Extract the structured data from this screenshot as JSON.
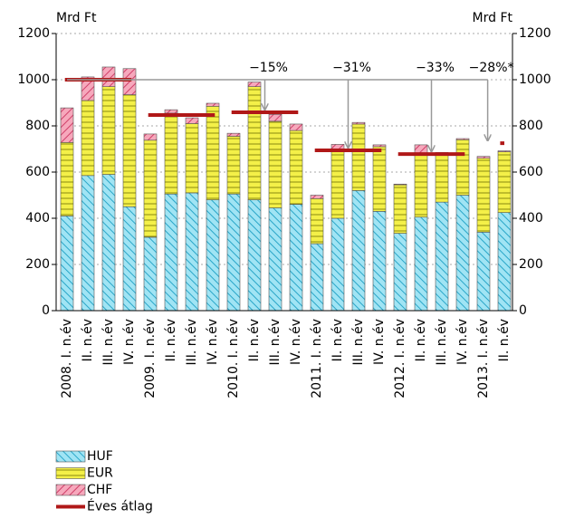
{
  "chart_data": {
    "type": "bar",
    "stacked": true,
    "y_label": "Mrd Ft",
    "y2_label": "Mrd Ft",
    "categories": [
      "2008. I. n.év",
      "II. n.év",
      "III. n.év",
      "IV. n.év",
      "2009. I. n.év",
      "II. n.év",
      "III. n.év",
      "IV. n.év",
      "2010. I. n.év",
      "II. n.év",
      "III. n.év",
      "IV. n.év",
      "2011. I. n.év",
      "II. n.év",
      "III. n.év",
      "IV. n.év",
      "2012. I. n.év",
      "II. n.év",
      "III. n.év",
      "IV. n.év",
      "2013. I. n.év",
      "II. n.év"
    ],
    "series": [
      {
        "name": "HUF",
        "color": "#a0e4f4",
        "hatch": "#2aa6c8",
        "values": [
          410,
          585,
          590,
          450,
          318,
          505,
          510,
          480,
          505,
          480,
          445,
          460,
          290,
          400,
          520,
          430,
          335,
          405,
          470,
          500,
          340,
          425
        ]
      },
      {
        "name": "EUR",
        "color": "#f4f048",
        "hatch": "#8a8a10",
        "values": [
          318,
          325,
          380,
          485,
          420,
          350,
          300,
          405,
          250,
          490,
          375,
          320,
          195,
          300,
          288,
          280,
          210,
          275,
          205,
          240,
          320,
          263
        ]
      },
      {
        "name": "CHF",
        "color": "#f6a8bc",
        "hatch": "#d0406a",
        "values": [
          150,
          102,
          85,
          113,
          27,
          15,
          25,
          13,
          13,
          20,
          30,
          28,
          15,
          20,
          7,
          8,
          3,
          38,
          10,
          5,
          8,
          4
        ]
      }
    ],
    "average": {
      "name": "Éves átlag",
      "color": "#b01818",
      "values": [
        1000,
        847,
        859,
        694,
        678,
        725
      ]
    },
    "annotations": [
      "−15%",
      "−31%",
      "−33%",
      "−28%*"
    ],
    "ylim": [
      0,
      1200
    ],
    "yticks": [
      0,
      200,
      400,
      600,
      800,
      1000,
      1200
    ],
    "y2lim": [
      0,
      1200
    ],
    "y2ticks": [
      0,
      200,
      400,
      600,
      800,
      1000,
      1200
    ],
    "grid": true
  }
}
